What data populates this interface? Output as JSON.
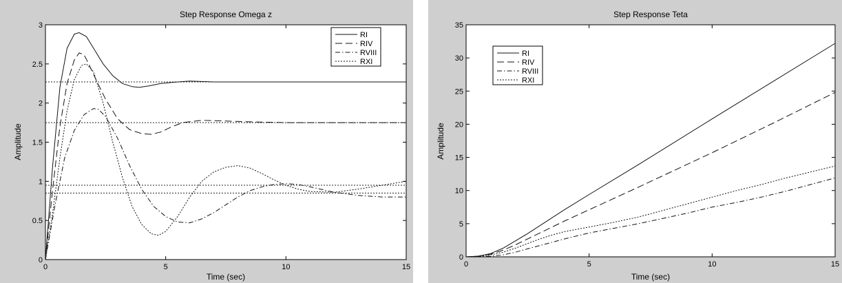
{
  "chart_data": [
    {
      "type": "line",
      "title": "Step Response Omega z",
      "xlabel": "Time (sec)",
      "ylabel": "Amplitude",
      "xlim": [
        0,
        15
      ],
      "ylim": [
        0,
        3
      ],
      "xticks": [
        "0",
        "5",
        "10",
        "15"
      ],
      "yticks": [
        "0",
        "0.5",
        "1",
        "1.5",
        "2",
        "2.5",
        "3"
      ],
      "legend": "top-right",
      "grid": false,
      "reference_lines": [
        2.27,
        1.75,
        0.95,
        0.85
      ],
      "series": [
        {
          "name": "RI",
          "style": "solid",
          "x": [
            0,
            0.3,
            0.6,
            0.9,
            1.2,
            1.4,
            1.7,
            2.0,
            2.4,
            2.8,
            3.2,
            3.6,
            3.9,
            4.3,
            4.8,
            5.5,
            6.0,
            7.0,
            8.0,
            10.0,
            15.0
          ],
          "y": [
            0,
            1.2,
            2.2,
            2.7,
            2.88,
            2.9,
            2.85,
            2.7,
            2.5,
            2.35,
            2.25,
            2.21,
            2.2,
            2.22,
            2.25,
            2.27,
            2.28,
            2.27,
            2.27,
            2.27,
            2.27
          ]
        },
        {
          "name": "RIV",
          "style": "dashed",
          "x": [
            0,
            0.3,
            0.6,
            0.9,
            1.2,
            1.4,
            1.6,
            1.8,
            2.1,
            2.5,
            3.0,
            3.5,
            4.0,
            4.4,
            4.8,
            5.2,
            5.7,
            6.5,
            7.5,
            8.5,
            10.0,
            12.0,
            15.0
          ],
          "y": [
            0,
            0.9,
            1.7,
            2.25,
            2.55,
            2.64,
            2.62,
            2.5,
            2.3,
            2.05,
            1.8,
            1.66,
            1.61,
            1.6,
            1.63,
            1.69,
            1.75,
            1.78,
            1.77,
            1.76,
            1.75,
            1.75,
            1.75
          ]
        },
        {
          "name": "RVIII",
          "style": "dashdot",
          "x": [
            0,
            0.4,
            0.8,
            1.2,
            1.6,
            2.0,
            2.2,
            2.5,
            3.0,
            3.5,
            4.0,
            4.5,
            5.0,
            5.5,
            6.0,
            6.5,
            7.0,
            7.5,
            8.0,
            8.5,
            9.0,
            9.5,
            10.0,
            10.5,
            11.0,
            12.0,
            13.0,
            14.0,
            15.0
          ],
          "y": [
            0,
            0.7,
            1.3,
            1.65,
            1.85,
            1.93,
            1.92,
            1.83,
            1.55,
            1.2,
            0.9,
            0.68,
            0.55,
            0.48,
            0.47,
            0.52,
            0.6,
            0.7,
            0.8,
            0.88,
            0.93,
            0.96,
            0.97,
            0.96,
            0.93,
            0.86,
            0.82,
            0.8,
            0.8
          ]
        },
        {
          "name": "RXI",
          "style": "dotted",
          "x": [
            0,
            0.3,
            0.6,
            0.9,
            1.2,
            1.5,
            1.7,
            2.0,
            2.4,
            2.8,
            3.2,
            3.6,
            4.0,
            4.4,
            4.7,
            5.0,
            5.5,
            6.0,
            6.5,
            7.0,
            7.5,
            8.0,
            8.5,
            9.0,
            9.5,
            10.0,
            10.5,
            11.0,
            12.0,
            13.0,
            14.0,
            15.0
          ],
          "y": [
            0,
            0.6,
            1.3,
            1.9,
            2.3,
            2.48,
            2.5,
            2.4,
            2.0,
            1.5,
            1.05,
            0.68,
            0.45,
            0.33,
            0.31,
            0.36,
            0.55,
            0.8,
            1.0,
            1.12,
            1.18,
            1.2,
            1.17,
            1.1,
            1.02,
            0.95,
            0.9,
            0.87,
            0.86,
            0.9,
            0.95,
            1.0
          ]
        }
      ]
    },
    {
      "type": "line",
      "title": "Step Response Teta",
      "xlabel": "Time (sec)",
      "ylabel": "Amplitude",
      "xlim": [
        0,
        15
      ],
      "ylim": [
        0,
        35
      ],
      "xticks": [
        "0",
        "5",
        "10",
        "15"
      ],
      "yticks": [
        "0",
        "5",
        "10",
        "15",
        "20",
        "25",
        "30",
        "35"
      ],
      "legend": "top-left",
      "grid": false,
      "series": [
        {
          "name": "RI",
          "style": "solid",
          "x": [
            0,
            0.5,
            1.0,
            1.5,
            2.0,
            2.5,
            3.0,
            4.0,
            5.0,
            7.0,
            10.0,
            12.5,
            15.0
          ],
          "y": [
            0,
            0.1,
            0.5,
            1.3,
            2.4,
            3.5,
            4.7,
            7.1,
            9.4,
            13.9,
            20.8,
            26.5,
            32.2
          ]
        },
        {
          "name": "RIV",
          "style": "dashed",
          "x": [
            0,
            0.5,
            1.0,
            1.5,
            2.0,
            2.5,
            3.0,
            4.0,
            5.0,
            7.0,
            10.0,
            12.5,
            15.0
          ],
          "y": [
            0,
            0.1,
            0.4,
            1.0,
            1.8,
            2.7,
            3.6,
            5.4,
            7.1,
            10.5,
            15.7,
            20.2,
            24.8
          ]
        },
        {
          "name": "RVIII",
          "style": "dashdot",
          "x": [
            0,
            1.0,
            1.5,
            2.0,
            2.5,
            3.0,
            3.5,
            4.0,
            5.0,
            6.0,
            7.0,
            8.0,
            9.0,
            10.0,
            11.0,
            12.0,
            13.0,
            14.0,
            15.0
          ],
          "y": [
            0,
            0.1,
            0.3,
            0.7,
            1.2,
            1.7,
            2.2,
            2.7,
            3.6,
            4.3,
            5.0,
            5.8,
            6.6,
            7.5,
            8.2,
            9.0,
            9.9,
            10.9,
            11.9
          ]
        },
        {
          "name": "RXI",
          "style": "dotted",
          "x": [
            0,
            0.5,
            1.0,
            1.5,
            2.0,
            2.5,
            3.0,
            3.5,
            4.0,
            5.0,
            6.0,
            7.0,
            8.0,
            9.0,
            10.0,
            11.0,
            12.0,
            13.0,
            14.0,
            15.0
          ],
          "y": [
            0,
            0.1,
            0.3,
            0.7,
            1.3,
            2.0,
            2.7,
            3.3,
            3.8,
            4.5,
            5.2,
            6.0,
            7.0,
            8.0,
            9.0,
            10.0,
            10.9,
            11.9,
            12.8,
            13.7
          ]
        }
      ]
    }
  ]
}
